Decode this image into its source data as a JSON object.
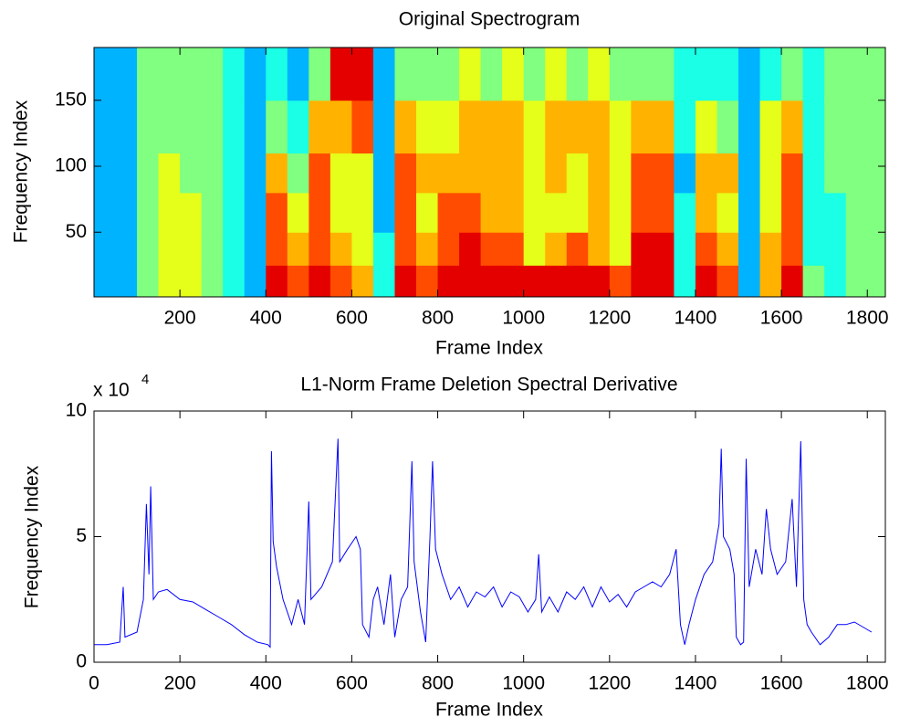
{
  "chart_data": [
    {
      "type": "heatmap",
      "title": "Original Spectrogram",
      "x_label": "Frame Index",
      "y_label": "Frequency Index",
      "xlim": [
        0,
        1842
      ],
      "ylim": [
        1,
        190
      ],
      "xticks": [
        200,
        400,
        600,
        800,
        1000,
        1200,
        1400,
        1600,
        1800
      ],
      "yticks": [
        50,
        100,
        150
      ],
      "colormap": "jet",
      "clim": [
        0,
        10
      ],
      "x_bins": [
        0,
        50,
        100,
        150,
        200,
        250,
        300,
        350,
        400,
        450,
        500,
        550,
        600,
        650,
        700,
        750,
        800,
        850,
        900,
        950,
        1000,
        1050,
        1100,
        1150,
        1200,
        1250,
        1300,
        1350,
        1400,
        1450,
        1500,
        1550,
        1600,
        1650,
        1700,
        1750,
        1800,
        1842
      ],
      "y_bins": [
        1,
        25,
        50,
        80,
        110,
        150,
        190
      ],
      "values": [
        [
          3,
          3,
          3,
          3,
          3,
          3
        ],
        [
          3,
          3,
          3,
          3,
          3,
          3
        ],
        [
          5,
          5,
          5,
          5,
          5,
          5
        ],
        [
          6,
          6,
          6,
          6,
          5,
          5
        ],
        [
          6,
          6,
          6,
          5,
          5,
          5
        ],
        [
          5,
          5,
          5,
          5,
          5,
          5
        ],
        [
          4,
          4,
          4,
          4,
          4,
          4
        ],
        [
          3,
          3,
          3,
          3,
          3,
          3
        ],
        [
          9,
          8,
          8,
          7,
          5,
          4
        ],
        [
          8,
          7,
          6,
          5,
          4,
          3
        ],
        [
          9,
          8,
          8,
          8,
          7,
          5
        ],
        [
          8,
          7,
          6,
          6,
          7,
          9
        ],
        [
          7,
          6,
          6,
          6,
          8,
          9
        ],
        [
          4,
          4,
          3,
          3,
          3,
          3
        ],
        [
          9,
          8,
          8,
          8,
          7,
          5
        ],
        [
          8,
          7,
          6,
          7,
          6,
          5
        ],
        [
          9,
          8,
          8,
          7,
          6,
          5
        ],
        [
          9,
          9,
          8,
          7,
          7,
          6
        ],
        [
          9,
          8,
          7,
          7,
          7,
          5
        ],
        [
          9,
          8,
          7,
          7,
          7,
          6
        ],
        [
          9,
          6,
          6,
          6,
          6,
          5
        ],
        [
          9,
          7,
          6,
          7,
          7,
          6
        ],
        [
          9,
          8,
          6,
          6,
          7,
          5
        ],
        [
          9,
          7,
          7,
          7,
          7,
          6
        ],
        [
          8,
          6,
          6,
          6,
          6,
          5
        ],
        [
          9,
          9,
          8,
          8,
          7,
          5
        ],
        [
          9,
          9,
          8,
          8,
          7,
          5
        ],
        [
          4,
          4,
          4,
          3,
          4,
          4
        ],
        [
          9,
          8,
          7,
          7,
          6,
          4
        ],
        [
          8,
          7,
          6,
          7,
          5,
          4
        ],
        [
          3,
          3,
          3,
          3,
          3,
          3
        ],
        [
          7,
          7,
          6,
          6,
          6,
          4
        ],
        [
          9,
          8,
          8,
          8,
          7,
          5
        ],
        [
          5,
          4,
          4,
          4,
          4,
          4
        ],
        [
          4,
          4,
          4,
          5,
          5,
          5
        ],
        [
          5,
          5,
          5,
          5,
          5,
          5
        ],
        [
          5,
          5,
          5,
          5,
          5,
          5
        ]
      ]
    },
    {
      "type": "line",
      "title": "L1-Norm Frame Deletion Spectral Derivative",
      "x_label": "Frame Index",
      "y_label": "Frequency Index",
      "y_multiplier": {
        "base": "x 10",
        "exponent": "4"
      },
      "xlim": [
        0,
        1842
      ],
      "ylim": [
        0,
        10
      ],
      "xticks": [
        0,
        200,
        400,
        600,
        800,
        1000,
        1200,
        1400,
        1600,
        1800
      ],
      "yticks": [
        0,
        5,
        10
      ],
      "color": "#0000ff",
      "x": [
        0,
        30,
        60,
        68,
        72,
        100,
        115,
        122,
        128,
        132,
        138,
        150,
        170,
        200,
        230,
        260,
        290,
        320,
        350,
        380,
        405,
        410,
        413,
        417,
        425,
        440,
        460,
        475,
        490,
        500,
        505,
        530,
        555,
        568,
        572,
        590,
        610,
        620,
        625,
        640,
        650,
        660,
        675,
        690,
        700,
        715,
        730,
        740,
        745,
        760,
        772,
        782,
        788,
        795,
        810,
        830,
        850,
        870,
        890,
        910,
        930,
        950,
        970,
        990,
        1010,
        1028,
        1035,
        1042,
        1060,
        1080,
        1100,
        1120,
        1140,
        1160,
        1180,
        1200,
        1220,
        1240,
        1260,
        1280,
        1300,
        1320,
        1340,
        1355,
        1365,
        1375,
        1385,
        1400,
        1420,
        1440,
        1455,
        1460,
        1465,
        1480,
        1490,
        1495,
        1505,
        1512,
        1518,
        1525,
        1540,
        1555,
        1565,
        1575,
        1590,
        1610,
        1625,
        1635,
        1645,
        1652,
        1660,
        1670,
        1690,
        1710,
        1730,
        1750,
        1770,
        1790,
        1810
      ],
      "values": [
        0.7,
        0.7,
        0.8,
        3.0,
        1.0,
        1.2,
        2.5,
        6.3,
        3.5,
        7.0,
        2.5,
        2.8,
        2.9,
        2.5,
        2.4,
        2.1,
        1.8,
        1.5,
        1.1,
        0.8,
        0.7,
        0.6,
        8.4,
        4.8,
        3.8,
        2.5,
        1.5,
        2.5,
        1.5,
        6.4,
        2.5,
        3.0,
        4.0,
        8.9,
        4.0,
        4.5,
        5.0,
        4.5,
        1.5,
        1.0,
        2.5,
        3.0,
        1.5,
        3.5,
        1.0,
        2.5,
        3.0,
        8.0,
        4.0,
        2.0,
        0.8,
        5.0,
        8.0,
        4.5,
        3.5,
        2.5,
        3.0,
        2.2,
        2.8,
        2.6,
        3.0,
        2.2,
        2.8,
        2.6,
        2.0,
        2.5,
        4.3,
        2.0,
        2.6,
        2.0,
        2.8,
        2.5,
        3.0,
        2.2,
        3.0,
        2.4,
        2.7,
        2.2,
        2.8,
        3.0,
        3.2,
        3.0,
        3.5,
        4.5,
        1.5,
        0.7,
        1.5,
        2.5,
        3.5,
        4.0,
        5.5,
        8.5,
        5.0,
        4.5,
        3.5,
        1.0,
        0.7,
        0.8,
        8.1,
        3.0,
        4.5,
        3.5,
        6.1,
        4.5,
        3.5,
        4.0,
        6.5,
        3.0,
        8.8,
        2.5,
        1.5,
        1.2,
        0.7,
        1.0,
        1.5,
        1.5,
        1.6,
        1.4,
        1.2
      ]
    }
  ]
}
